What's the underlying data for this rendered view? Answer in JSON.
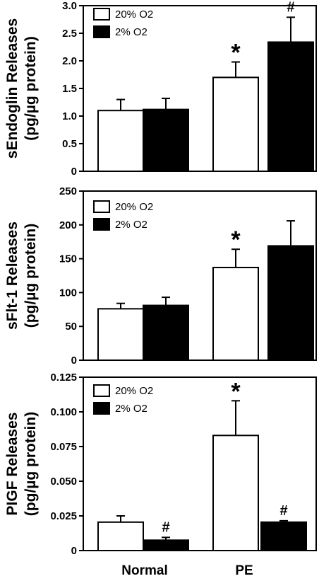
{
  "chart_data": [
    {
      "type": "bar",
      "ylabel": [
        "sEndoglin Releases",
        "(pg/µg protein)"
      ],
      "ylim": [
        0,
        3.0
      ],
      "yticks": [
        "0",
        "0.5",
        "1.0",
        "1.5",
        "2.0",
        "2.5",
        "3.0"
      ],
      "categories": [
        "Normal",
        "PE"
      ],
      "series": [
        {
          "name": "20% O2",
          "color": "#ffffff",
          "values": [
            1.1,
            1.7
          ],
          "errors": [
            0.2,
            0.28
          ]
        },
        {
          "name": "2% O2",
          "color": "#000000",
          "values": [
            1.12,
            2.34
          ],
          "errors": [
            0.2,
            0.45
          ]
        }
      ],
      "annotations": [
        {
          "text": "*",
          "category": 1,
          "series": 0
        },
        {
          "text": "#",
          "category": 1,
          "series": 1
        }
      ],
      "legend": "top-left"
    },
    {
      "type": "bar",
      "ylabel": [
        "sFlt-1 Releases",
        "(pg/µg protein)"
      ],
      "ylim": [
        0,
        250
      ],
      "yticks": [
        "0",
        "50",
        "100",
        "150",
        "200",
        "250"
      ],
      "categories": [
        "Normal",
        "PE"
      ],
      "series": [
        {
          "name": "20% O2",
          "color": "#ffffff",
          "values": [
            76,
            137
          ],
          "errors": [
            8,
            27
          ]
        },
        {
          "name": "2% O2",
          "color": "#000000",
          "values": [
            81,
            169
          ],
          "errors": [
            12,
            37
          ]
        }
      ],
      "annotations": [
        {
          "text": "*",
          "category": 1,
          "series": 0
        }
      ],
      "legend": "top-left"
    },
    {
      "type": "bar",
      "ylabel": [
        "PIGF Releases",
        "(pg/µg protein)"
      ],
      "ylim": [
        0,
        0.125
      ],
      "yticks": [
        "0",
        "0.025",
        "0.050",
        "0.075",
        "0.100",
        "0.125"
      ],
      "categories": [
        "Normal",
        "PE"
      ],
      "series": [
        {
          "name": "20% O2",
          "color": "#ffffff",
          "values": [
            0.0205,
            0.083
          ],
          "errors": [
            0.0045,
            0.025
          ]
        },
        {
          "name": "2% O2",
          "color": "#000000",
          "values": [
            0.0075,
            0.0205
          ],
          "errors": [
            0.002,
            0.001
          ]
        }
      ],
      "annotations": [
        {
          "text": "*",
          "category": 1,
          "series": 0
        },
        {
          "text": "#",
          "category": 0,
          "series": 1
        },
        {
          "text": "#",
          "category": 1,
          "series": 1
        }
      ],
      "legend": "top-left"
    }
  ]
}
